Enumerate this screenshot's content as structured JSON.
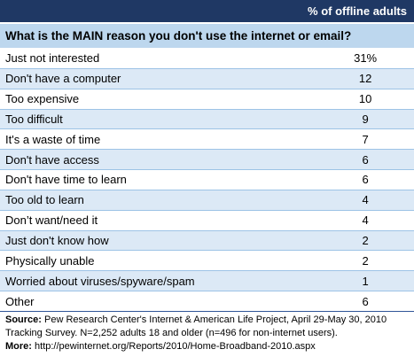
{
  "chart_data": {
    "type": "table",
    "column_header": "% of offline adults",
    "question": "What is the MAIN reason you don't use the internet or email?",
    "rows": [
      {
        "label": "Just not interested",
        "value": "31%"
      },
      {
        "label": "Don't have a computer",
        "value": "12"
      },
      {
        "label": "Too expensive",
        "value": "10"
      },
      {
        "label": "Too difficult",
        "value": "9"
      },
      {
        "label": "It's a waste of time",
        "value": "7"
      },
      {
        "label": "Don't have access",
        "value": "6"
      },
      {
        "label": "Don't have time to learn",
        "value": "6"
      },
      {
        "label": "Too old to learn",
        "value": "4"
      },
      {
        "label": "Don’t want/need it",
        "value": "4"
      },
      {
        "label": "Just don't know how",
        "value": "2"
      },
      {
        "label": "Physically unable",
        "value": "2"
      },
      {
        "label": "Worried about viruses/spyware/spam",
        "value": "1"
      },
      {
        "label": "Other",
        "value": "6"
      }
    ]
  },
  "footnote": {
    "source_label": "Source:",
    "source_text": "Pew Research Center's Internet & American Life Project, April 29-May 30, 2010 Tracking Survey. N=2,252 adults 18 and older (n=496 for non-internet users).",
    "more_label": "More:",
    "more_text": "http://pewinternet.org/Reports/2010/Home-Broadband-2010.aspx"
  },
  "colors": {
    "header_bar": "#1f3864",
    "question_band": "#bdd7ee",
    "alt_row": "#dce9f6",
    "row_rule": "#9dc3e6"
  }
}
